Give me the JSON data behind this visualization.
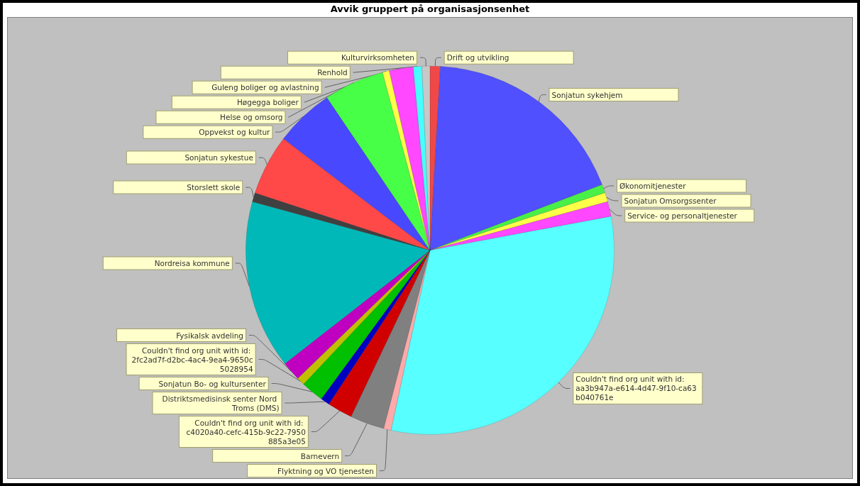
{
  "chart_data": {
    "type": "pie",
    "title": "Avvik gruppert på organisasjonsenhet",
    "categories": [
      "Drift og utvikling",
      "Sonjatun sykehjem",
      "Økonomitjenester",
      "Sonjatun Omsorgssenter",
      "Service- og personaltjenester",
      "Couldn't find org unit with id: aa3b947a-e614-4d47-9f10-ca63b040761e",
      "Flyktning og VO tjenesten",
      "Barnevern",
      "Couldn't find org unit with id: c4020a40-cefc-415b-9c22-7950885a3e05",
      "Distriktsmedisinsk senter Nord Troms (DMS)",
      "Sonjatun Bo- og kultursenter",
      "Couldn't find org unit with id: 2fc2ad7f-d2bc-4ac4-9ea4-9650c5028954",
      "Fysikalsk avdeling",
      "Nordreisa kommune",
      "Storslett skole",
      "Sonjatun sykestue",
      "Oppvekst og kultur",
      "Helse og omsorg",
      "Høgegga boliger",
      "Guleng boliger og avlastning",
      "Renhold",
      "Kulturvirksomheten"
    ],
    "values": [
      0.9,
      18.3,
      0.75,
      0.8,
      1.3,
      31.35,
      0.65,
      3.0,
      2.2,
      0.8,
      2.0,
      0.7,
      1.7,
      14.8,
      0.8,
      5.3,
      5.2,
      5.3,
      0.6,
      2.1,
      0.75,
      0.7
    ],
    "colors": [
      "#f04848",
      "#5050ff",
      "#48f048",
      "#ffff48",
      "#ff48ff",
      "#58ffff",
      "#ffaaaa",
      "#808080",
      "#d00000",
      "#0000c0",
      "#00c000",
      "#c0c000",
      "#c000c0",
      "#00b8b8",
      "#404040",
      "#ff4848",
      "#4848ff",
      "#48ff48",
      "#ffff48",
      "#ff48ff",
      "#48ffff",
      "#c8c8c8"
    ],
    "legend": false
  }
}
